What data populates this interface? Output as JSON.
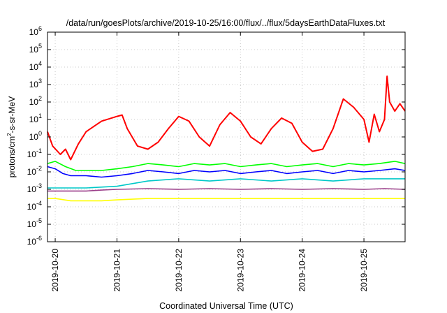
{
  "chart_data": {
    "type": "line",
    "title": "/data/run/goesPlots/archive/2019-10-25/16:00/flux/../flux/5daysEarthDataFluxes.txt",
    "xlabel": "Coordinated Universal Time (UTC)",
    "ylabel": "protons/cm²-s-sr-MeV",
    "ylabel_parts": {
      "base": "protons/cm",
      "sup": "2",
      "rest": "-s-sr-MeV"
    },
    "yscale": "log",
    "ylim": [
      1e-06,
      1000000.0
    ],
    "xlim": [
      "2019-10-19T21:00",
      "2019-10-25T16:00"
    ],
    "grid": true,
    "legend": "none",
    "x_ticks": [
      "2019-10-20",
      "2019-10-21",
      "2019-10-22",
      "2019-10-23",
      "2019-10-24",
      "2019-10-25"
    ],
    "y_ticks": [
      {
        "base": "10",
        "exp": "-6"
      },
      {
        "base": "10",
        "exp": "-5"
      },
      {
        "base": "10",
        "exp": "-4"
      },
      {
        "base": "10",
        "exp": "-3"
      },
      {
        "base": "10",
        "exp": "-2"
      },
      {
        "base": "10",
        "exp": "-1"
      },
      {
        "base": "10",
        "exp": "0"
      },
      {
        "base": "10",
        "exp": "1"
      },
      {
        "base": "10",
        "exp": "2"
      },
      {
        "base": "10",
        "exp": "3"
      },
      {
        "base": "10",
        "exp": "4"
      },
      {
        "base": "10",
        "exp": "5"
      },
      {
        "base": "10",
        "exp": "6"
      }
    ],
    "series": [
      {
        "color": "#ffff00",
        "x": [
          "2019-10-19T21:00",
          "2019-10-20T00:00",
          "2019-10-20T06:00",
          "2019-10-20T12:00",
          "2019-10-20T18:00",
          "2019-10-21T00:00",
          "2019-10-21T12:00",
          "2019-10-22T00:00",
          "2019-10-22T12:00",
          "2019-10-23T00:00",
          "2019-10-23T12:00",
          "2019-10-24T00:00",
          "2019-10-24T12:00",
          "2019-10-25T00:00",
          "2019-10-25T08:00",
          "2019-10-25T16:00"
        ],
        "y": [
          0.0003,
          0.0003,
          0.00022,
          0.00022,
          0.00022,
          0.00025,
          0.0003,
          0.0003,
          0.0003,
          0.0003,
          0.0003,
          0.0003,
          0.0003,
          0.0003,
          0.0003,
          0.0003
        ]
      },
      {
        "color": "#00ff00",
        "x": [
          "2019-10-19T21:00",
          "2019-10-20T00:00",
          "2019-10-20T04:00",
          "2019-10-20T08:00",
          "2019-10-20T12:00",
          "2019-10-20T18:00",
          "2019-10-21T00:00",
          "2019-10-21T06:00",
          "2019-10-21T12:00",
          "2019-10-21T18:00",
          "2019-10-22T00:00",
          "2019-10-22T06:00",
          "2019-10-22T12:00",
          "2019-10-22T18:00",
          "2019-10-23T00:00",
          "2019-10-23T06:00",
          "2019-10-23T12:00",
          "2019-10-23T18:00",
          "2019-10-24T00:00",
          "2019-10-24T06:00",
          "2019-10-24T12:00",
          "2019-10-24T18:00",
          "2019-10-25T00:00",
          "2019-10-25T06:00",
          "2019-10-25T12:00",
          "2019-10-25T16:00"
        ],
        "y": [
          0.03,
          0.04,
          0.02,
          0.012,
          0.012,
          0.012,
          0.015,
          0.02,
          0.03,
          0.025,
          0.02,
          0.03,
          0.025,
          0.03,
          0.02,
          0.025,
          0.03,
          0.02,
          0.025,
          0.03,
          0.02,
          0.03,
          0.025,
          0.03,
          0.04,
          0.03
        ]
      },
      {
        "color": "#00c8c8",
        "x": [
          "2019-10-19T21:00",
          "2019-10-20T06:00",
          "2019-10-20T12:00",
          "2019-10-21T00:00",
          "2019-10-21T12:00",
          "2019-10-22T00:00",
          "2019-10-22T12:00",
          "2019-10-23T00:00",
          "2019-10-23T12:00",
          "2019-10-24T00:00",
          "2019-10-24T12:00",
          "2019-10-25T00:00",
          "2019-10-25T16:00"
        ],
        "y": [
          0.0012,
          0.0012,
          0.0012,
          0.0015,
          0.003,
          0.004,
          0.003,
          0.004,
          0.003,
          0.004,
          0.003,
          0.004,
          0.004
        ]
      },
      {
        "color": "#0000ff",
        "x": [
          "2019-10-19T21:00",
          "2019-10-20T00:00",
          "2019-10-20T03:00",
          "2019-10-20T06:00",
          "2019-10-20T12:00",
          "2019-10-20T18:00",
          "2019-10-21T00:00",
          "2019-10-21T06:00",
          "2019-10-21T12:00",
          "2019-10-21T18:00",
          "2019-10-22T00:00",
          "2019-10-22T06:00",
          "2019-10-22T12:00",
          "2019-10-22T18:00",
          "2019-10-23T00:00",
          "2019-10-23T06:00",
          "2019-10-23T12:00",
          "2019-10-23T18:00",
          "2019-10-24T00:00",
          "2019-10-24T06:00",
          "2019-10-24T12:00",
          "2019-10-24T18:00",
          "2019-10-25T00:00",
          "2019-10-25T06:00",
          "2019-10-25T12:00",
          "2019-10-25T16:00"
        ],
        "y": [
          0.02,
          0.015,
          0.008,
          0.006,
          0.006,
          0.005,
          0.006,
          0.008,
          0.012,
          0.01,
          0.008,
          0.012,
          0.01,
          0.012,
          0.008,
          0.01,
          0.012,
          0.008,
          0.01,
          0.012,
          0.008,
          0.012,
          0.01,
          0.012,
          0.015,
          0.012
        ]
      },
      {
        "color": "#9b3f8a",
        "x": [
          "2019-10-19T21:00",
          "2019-10-20T00:00",
          "2019-10-20T06:00",
          "2019-10-20T12:00",
          "2019-10-20T18:00",
          "2019-10-21T00:00",
          "2019-10-21T12:00",
          "2019-10-22T00:00",
          "2019-10-22T12:00",
          "2019-10-23T00:00",
          "2019-10-23T12:00",
          "2019-10-24T00:00",
          "2019-10-24T12:00",
          "2019-10-25T00:00",
          "2019-10-25T08:00",
          "2019-10-25T16:00"
        ],
        "y": [
          0.0008,
          0.0008,
          0.0008,
          0.0008,
          0.0009,
          0.001,
          0.0011,
          0.001,
          0.0011,
          0.001,
          0.0011,
          0.001,
          0.0011,
          0.001,
          0.0011,
          0.001
        ]
      },
      {
        "color": "#ff0000",
        "x": [
          "2019-10-19T21:00",
          "2019-10-19T23:00",
          "2019-10-20T02:00",
          "2019-10-20T04:00",
          "2019-10-20T06:00",
          "2019-10-20T09:00",
          "2019-10-20T12:00",
          "2019-10-20T18:00",
          "2019-10-21T00:00",
          "2019-10-21T02:00",
          "2019-10-21T04:00",
          "2019-10-21T08:00",
          "2019-10-21T12:00",
          "2019-10-21T16:00",
          "2019-10-21T20:00",
          "2019-10-22T00:00",
          "2019-10-22T04:00",
          "2019-10-22T08:00",
          "2019-10-22T12:00",
          "2019-10-22T16:00",
          "2019-10-22T20:00",
          "2019-10-23T00:00",
          "2019-10-23T04:00",
          "2019-10-23T08:00",
          "2019-10-23T12:00",
          "2019-10-23T16:00",
          "2019-10-23T20:00",
          "2019-10-24T00:00",
          "2019-10-24T04:00",
          "2019-10-24T08:00",
          "2019-10-24T12:00",
          "2019-10-24T16:00",
          "2019-10-24T20:00",
          "2019-10-25T00:00",
          "2019-10-25T02:00",
          "2019-10-25T04:00",
          "2019-10-25T06:00",
          "2019-10-25T08:00",
          "2019-10-25T09:00",
          "2019-10-25T10:00",
          "2019-10-25T12:00",
          "2019-10-25T14:00",
          "2019-10-25T16:00"
        ],
        "y": [
          2,
          0.3,
          0.1,
          0.2,
          0.05,
          0.4,
          2,
          8,
          15,
          18,
          3,
          0.3,
          0.2,
          0.5,
          3,
          15,
          8,
          1,
          0.3,
          5,
          25,
          8,
          1,
          0.4,
          3,
          12,
          6,
          0.5,
          0.15,
          0.2,
          3,
          150,
          50,
          10,
          0.5,
          20,
          2,
          10,
          3000,
          100,
          30,
          80,
          30
        ]
      }
    ]
  }
}
